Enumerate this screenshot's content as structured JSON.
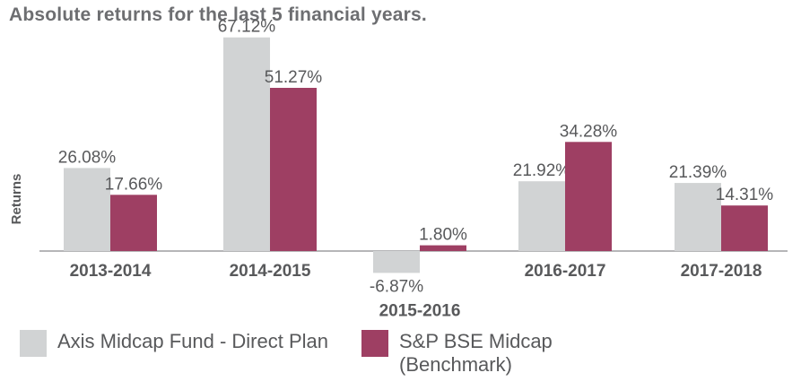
{
  "chart_data": {
    "type": "bar",
    "title": "Absolute returns for the last 5 financial years.",
    "ylabel": "Returns",
    "xlabel": "",
    "categories": [
      "2013-2014",
      "2014-2015",
      "2015-2016",
      "2016-2017",
      "2017-2018"
    ],
    "series": [
      {
        "name": "Axis Midcap Fund - Direct Plan",
        "values": [
          26.08,
          67.12,
          -6.87,
          21.92,
          21.39
        ],
        "labels": [
          "26.08%",
          "67.12%",
          "-6.87%",
          "21.92%",
          "21.39%"
        ],
        "color": "#d1d3d4"
      },
      {
        "name": "S&P BSE Midcap (Benchmark)",
        "values": [
          17.66,
          51.27,
          1.8,
          34.28,
          14.31
        ],
        "labels": [
          "17.66%",
          "51.27%",
          "1.80%",
          "34.28%",
          "14.31%"
        ],
        "color": "#9e3f63"
      }
    ],
    "legend": [
      {
        "lines": [
          "Axis Midcap Fund - Direct Plan"
        ]
      },
      {
        "lines": [
          "S&P BSE Midcap",
          "(Benchmark)"
        ]
      }
    ],
    "ylim": [
      -10,
      70
    ],
    "grid": false,
    "legend_position": "bottom"
  }
}
